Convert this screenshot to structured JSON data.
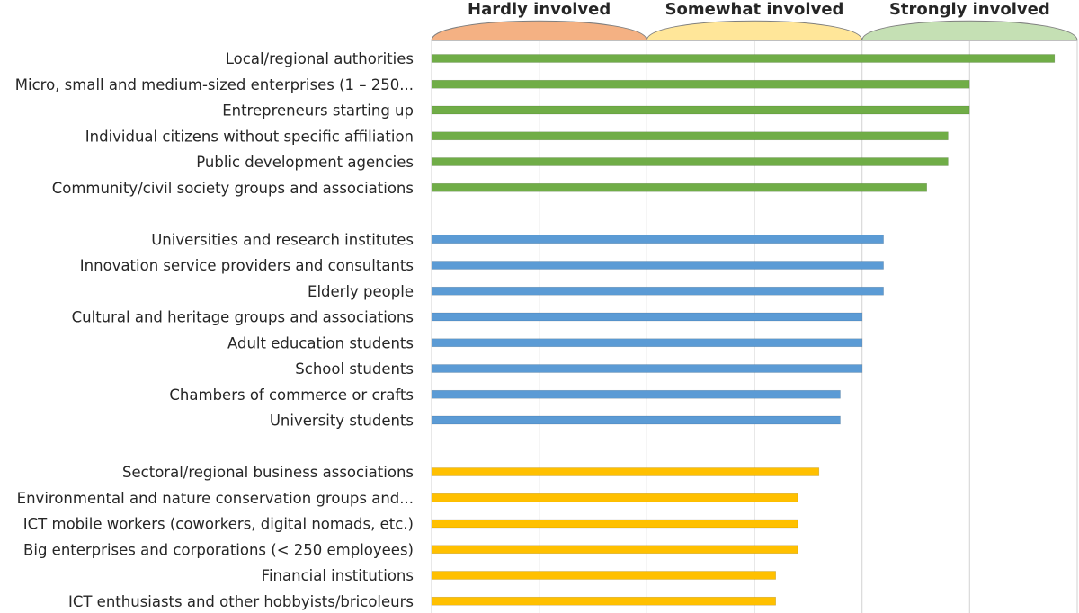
{
  "chart_data": {
    "type": "bar",
    "orientation": "horizontal",
    "title": "",
    "xlabel": "",
    "ylabel": "",
    "xlim": [
      0,
      1
    ],
    "grid": true,
    "involvement_bands": [
      {
        "label": "Hardly involved",
        "from": 0,
        "to": 0.3333,
        "color": "#f4b183"
      },
      {
        "label": "Somewhat involved",
        "from": 0.3333,
        "to": 0.6667,
        "color": "#ffe699"
      },
      {
        "label": "Strongly involved",
        "from": 0.6667,
        "to": 1,
        "color": "#c5e0b4"
      }
    ],
    "groups": [
      {
        "color": "#70ad47",
        "categories": [
          "Local/regional authorities",
          "Micro, small and medium-sized enterprises (1 – 250...",
          "Entrepreneurs starting up",
          "Individual citizens without specific affiliation",
          "Public development agencies",
          "Community/civil society groups and associations"
        ],
        "values": [
          0.965,
          0.833,
          0.833,
          0.8,
          0.8,
          0.767
        ]
      },
      {
        "color": "#5b9bd5",
        "categories": [
          "Universities and research institutes",
          "Innovation service providers and consultants",
          "Elderly people",
          "Cultural and heritage groups and associations",
          "Adult education students",
          "School students",
          "Chambers of commerce or crafts",
          "University  students"
        ],
        "values": [
          0.7,
          0.7,
          0.7,
          0.667,
          0.667,
          0.667,
          0.633,
          0.633
        ]
      },
      {
        "color": "#ffc000",
        "categories": [
          "Sectoral/regional business associations",
          "Environmental and nature conservation groups and...",
          "ICT mobile workers (coworkers, digital nomads, etc.)",
          "Big enterprises and corporations (< 250 employees)",
          "Financial institutions",
          "ICT enthusiasts and other hobbyists/bricoleurs"
        ],
        "values": [
          0.6,
          0.567,
          0.567,
          0.567,
          0.533,
          0.533
        ]
      }
    ]
  }
}
